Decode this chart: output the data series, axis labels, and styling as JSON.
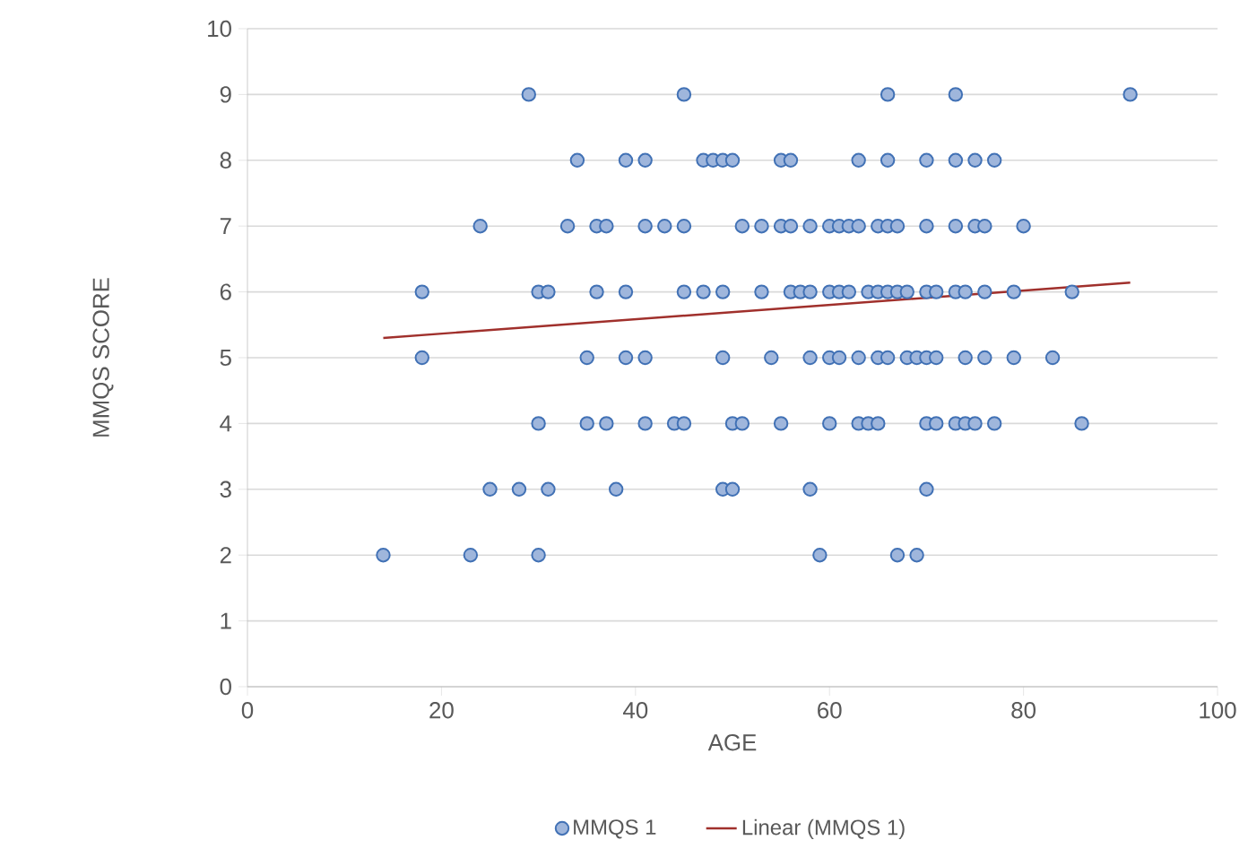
{
  "chart_data": {
    "type": "scatter",
    "xlabel": "AGE",
    "ylabel": "MMQS SCORE",
    "xlim": [
      0,
      100
    ],
    "xticks": [
      0,
      20,
      40,
      60,
      80,
      100
    ],
    "ylim": [
      0,
      10
    ],
    "yticks": [
      0,
      1,
      2,
      3,
      4,
      5,
      6,
      7,
      8,
      9,
      10
    ],
    "grid": "y",
    "legend": "bottom",
    "marker": "circle",
    "series": [
      {
        "name": "MMQS 1",
        "color": "#9fb6dc",
        "x": [
          29,
          45,
          66,
          73,
          91,
          34,
          39,
          41,
          47,
          48,
          49,
          50,
          55,
          56,
          63,
          66,
          70,
          73,
          75,
          77,
          24,
          33,
          36,
          37,
          41,
          43,
          45,
          51,
          53,
          55,
          56,
          58,
          60,
          61,
          62,
          63,
          65,
          66,
          67,
          70,
          73,
          75,
          76,
          80,
          18,
          30,
          31,
          36,
          39,
          45,
          47,
          49,
          53,
          56,
          57,
          58,
          60,
          61,
          62,
          64,
          65,
          66,
          67,
          68,
          70,
          71,
          73,
          74,
          76,
          79,
          85,
          18,
          35,
          39,
          41,
          49,
          54,
          58,
          60,
          61,
          63,
          65,
          66,
          68,
          69,
          70,
          71,
          74,
          76,
          79,
          83,
          30,
          35,
          37,
          41,
          44,
          45,
          50,
          51,
          55,
          60,
          63,
          64,
          65,
          70,
          71,
          73,
          74,
          75,
          77,
          86,
          25,
          28,
          31,
          38,
          49,
          50,
          58,
          70,
          14,
          23,
          30,
          59,
          67,
          69
        ],
        "values": [
          9,
          9,
          9,
          9,
          9,
          8,
          8,
          8,
          8,
          8,
          8,
          8,
          8,
          8,
          8,
          8,
          8,
          8,
          8,
          8,
          7,
          7,
          7,
          7,
          7,
          7,
          7,
          7,
          7,
          7,
          7,
          7,
          7,
          7,
          7,
          7,
          7,
          7,
          7,
          7,
          7,
          7,
          7,
          7,
          6,
          6,
          6,
          6,
          6,
          6,
          6,
          6,
          6,
          6,
          6,
          6,
          6,
          6,
          6,
          6,
          6,
          6,
          6,
          6,
          6,
          6,
          6,
          6,
          6,
          6,
          6,
          5,
          5,
          5,
          5,
          5,
          5,
          5,
          5,
          5,
          5,
          5,
          5,
          5,
          5,
          5,
          5,
          5,
          5,
          5,
          5,
          4,
          4,
          4,
          4,
          4,
          4,
          4,
          4,
          4,
          4,
          4,
          4,
          4,
          4,
          4,
          4,
          4,
          4,
          4,
          4,
          3,
          3,
          3,
          3,
          3,
          3,
          3,
          3,
          2,
          2,
          2,
          2,
          2,
          2
        ]
      },
      {
        "name": "Linear (MMQS 1)",
        "type": "line",
        "marker": "none",
        "color": "#a0302c",
        "x": [
          14,
          91
        ],
        "values": [
          5.3,
          6.14
        ]
      }
    ]
  }
}
